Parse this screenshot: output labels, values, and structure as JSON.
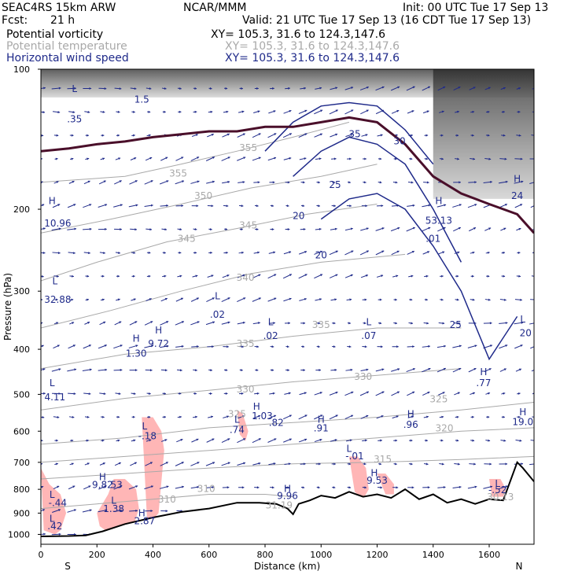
{
  "header": {
    "model": "SEAC4RS 15km ARW",
    "org": "NCAR/MMM",
    "init": "Init: 00 UTC Tue 17 Sep 13",
    "fcst_label": "Fcst:",
    "fcst_value": "21 h",
    "valid": "Valid: 21 UTC Tue 17 Sep 13 (16 CDT Tue 17 Sep 13)",
    "fields": [
      {
        "name": "Potential vorticity",
        "xy": "XY= 105.3, 31.6 to 124.3,147.6",
        "color": "#000000"
      },
      {
        "name": "Potential temperature",
        "xy": "XY= 105.3, 31.6 to 124.3,147.6",
        "color": "#a9a9a9"
      },
      {
        "name": "Horizontal wind speed",
        "xy": "XY= 105.3, 31.6 to 124.3,147.6",
        "color": "#1f2a8a"
      }
    ]
  },
  "chart_data": {
    "type": "cross-section",
    "xlabel": "Distance (km)",
    "ylabel": "Pressure (hPa)",
    "xlim": [
      0,
      1760
    ],
    "ylim": [
      1050,
      100
    ],
    "y_scale": "log",
    "xticks": [
      0,
      200,
      400,
      600,
      800,
      1000,
      1200,
      1400,
      1600
    ],
    "yticks": [
      100,
      200,
      300,
      400,
      500,
      600,
      700,
      800,
      900,
      1000
    ],
    "endpoints": {
      "left": "S",
      "right": "N"
    },
    "colors": {
      "pv_fill": "#ffb6b6",
      "theta": "#a9a9a9",
      "wind": "#1f2a8a",
      "pv_line": "#4a0f2a",
      "terrain": "#000000"
    },
    "terrain": {
      "x": [
        0,
        100,
        160,
        220,
        300,
        400,
        500,
        600,
        700,
        780,
        840,
        880,
        900,
        920,
        960,
        1000,
        1050,
        1100,
        1150,
        1200,
        1250,
        1300,
        1350,
        1400,
        1450,
        1500,
        1550,
        1600,
        1650,
        1700,
        1720,
        1760
      ],
      "p": [
        1010,
        1008,
        1005,
        985,
        950,
        920,
        895,
        880,
        855,
        855,
        860,
        880,
        905,
        860,
        845,
        825,
        835,
        810,
        830,
        820,
        835,
        800,
        840,
        820,
        855,
        840,
        860,
        840,
        845,
        700,
        720,
        770
      ]
    },
    "pv_line": {
      "x": [
        0,
        100,
        200,
        300,
        400,
        500,
        600,
        700,
        800,
        900,
        1000,
        1100,
        1200,
        1300,
        1400,
        1500,
        1600,
        1700,
        1760
      ],
      "p": [
        150,
        148,
        145,
        143,
        140,
        138,
        136,
        136,
        133,
        133,
        130,
        127,
        130,
        145,
        170,
        185,
        195,
        205,
        225
      ]
    },
    "theta_contours": [
      {
        "value": "355",
        "x": [
          0,
          300,
          500,
          700,
          900,
          1100
        ],
        "p": [
          175,
          170,
          160,
          150,
          140,
          130
        ]
      },
      {
        "value": "350",
        "x": [
          0,
          250,
          500,
          750,
          1000,
          1200
        ],
        "p": [
          225,
          210,
          195,
          180,
          170,
          160
        ]
      },
      {
        "value": "345",
        "x": [
          0,
          200,
          450,
          700,
          950,
          1200
        ],
        "p": [
          285,
          260,
          235,
          220,
          205,
          195
        ]
      },
      {
        "value": "340",
        "x": [
          0,
          250,
          500,
          750,
          1000,
          1300
        ],
        "p": [
          360,
          330,
          300,
          275,
          260,
          250
        ]
      },
      {
        "value": "335",
        "x": [
          0,
          300,
          600,
          900,
          1200,
          1500
        ],
        "p": [
          440,
          410,
          395,
          375,
          360,
          360
        ]
      },
      {
        "value": "330",
        "x": [
          0,
          300,
          600,
          900,
          1200,
          1500
        ],
        "p": [
          540,
          510,
          490,
          470,
          455,
          440
        ]
      },
      {
        "value": "325",
        "x": [
          0,
          300,
          600,
          900,
          1200,
          1500,
          1760
        ],
        "p": [
          640,
          620,
          590,
          575,
          560,
          540,
          520
        ]
      },
      {
        "value": "320",
        "x": [
          0,
          300,
          600,
          900,
          1200,
          1500,
          1760
        ],
        "p": [
          700,
          680,
          660,
          640,
          620,
          600,
          590
        ]
      },
      {
        "value": "315",
        "x": [
          0,
          300,
          600,
          900,
          1200,
          1500,
          1760
        ],
        "p": [
          760,
          740,
          720,
          705,
          700,
          690,
          680
        ]
      },
      {
        "value": "310",
        "x": [
          0,
          200,
          400,
          600,
          800,
          900
        ],
        "p": [
          880,
          860,
          840,
          820,
          820,
          830
        ]
      }
    ],
    "wind_contours": [
      {
        "value": "30",
        "x": [
          800,
          900,
          1000,
          1100,
          1200,
          1300,
          1400
        ],
        "p": [
          150,
          130,
          120,
          118,
          120,
          135,
          160
        ]
      },
      {
        "value": "25",
        "x": [
          900,
          1000,
          1100,
          1200,
          1300,
          1400,
          1500
        ],
        "p": [
          170,
          150,
          140,
          145,
          160,
          200,
          260
        ]
      },
      {
        "value": "20",
        "x": [
          1000,
          1100,
          1200,
          1300,
          1400,
          1500,
          1600,
          1700
        ],
        "p": [
          210,
          190,
          185,
          200,
          240,
          300,
          420,
          340
        ]
      }
    ],
    "pv_blobs": [
      {
        "x": [
          0,
          30,
          70,
          90,
          70,
          50,
          10
        ],
        "p": [
          720,
          780,
          820,
          900,
          980,
          1000,
          980
        ]
      },
      {
        "x": [
          200,
          240,
          260,
          300,
          340,
          350,
          330,
          290,
          250,
          210
        ],
        "p": [
          900,
          820,
          760,
          760,
          800,
          880,
          960,
          1000,
          1000,
          960
        ]
      },
      {
        "x": [
          360,
          400,
          430,
          440,
          420,
          380
        ],
        "p": [
          560,
          560,
          600,
          660,
          900,
          960
        ]
      },
      {
        "x": [
          700,
          720,
          740,
          730,
          710
        ],
        "p": [
          540,
          550,
          600,
          630,
          610
        ]
      },
      {
        "x": [
          1100,
          1130,
          1160,
          1170,
          1150,
          1120
        ],
        "p": [
          680,
          680,
          720,
          800,
          840,
          810
        ]
      },
      {
        "x": [
          1200,
          1230,
          1260,
          1260,
          1230
        ],
        "p": [
          740,
          740,
          780,
          820,
          820
        ]
      },
      {
        "x": [
          1600,
          1640,
          1660,
          1650,
          1610
        ],
        "p": [
          760,
          760,
          800,
          830,
          830
        ]
      }
    ],
    "annotations": [
      {
        "text": "L",
        "x": 120,
        "p": 112,
        "color": "#1f2a8a"
      },
      {
        "text": ".35",
        "x": 120,
        "p": 130,
        "color": "#1f2a8a"
      },
      {
        "text": "1.5",
        "x": 360,
        "p": 118,
        "color": "#1f2a8a"
      },
      {
        "text": "355",
        "x": 490,
        "p": 170,
        "color": "#a9a9a9"
      },
      {
        "text": "355",
        "x": 740,
        "p": 150,
        "color": "#a9a9a9"
      },
      {
        "text": "350",
        "x": 580,
        "p": 190,
        "color": "#a9a9a9"
      },
      {
        "text": "345",
        "x": 520,
        "p": 235,
        "color": "#a9a9a9"
      },
      {
        "text": "345",
        "x": 740,
        "p": 220,
        "color": "#a9a9a9"
      },
      {
        "text": "340",
        "x": 730,
        "p": 285,
        "color": "#a9a9a9"
      },
      {
        "text": "335",
        "x": 730,
        "p": 395,
        "color": "#a9a9a9"
      },
      {
        "text": "335",
        "x": 1000,
        "p": 360,
        "color": "#a9a9a9"
      },
      {
        "text": "330",
        "x": 730,
        "p": 495,
        "color": "#a9a9a9"
      },
      {
        "text": "330",
        "x": 1150,
        "p": 465,
        "color": "#a9a9a9"
      },
      {
        "text": "325",
        "x": 1420,
        "p": 520,
        "color": "#a9a9a9"
      },
      {
        "text": "325",
        "x": 700,
        "p": 560,
        "color": "#a9a9a9"
      },
      {
        "text": "320",
        "x": 1440,
        "p": 600,
        "color": "#a9a9a9"
      },
      {
        "text": "315",
        "x": 1220,
        "p": 700,
        "color": "#a9a9a9"
      },
      {
        "text": "310",
        "x": 590,
        "p": 810,
        "color": "#a9a9a9"
      },
      {
        "text": "310",
        "x": 450,
        "p": 855,
        "color": "#a9a9a9"
      },
      {
        "text": "35",
        "x": 1120,
        "p": 140,
        "color": "#1f2a8a"
      },
      {
        "text": "30",
        "x": 1280,
        "p": 145,
        "color": "#1f2a8a"
      },
      {
        "text": "25",
        "x": 1050,
        "p": 180,
        "color": "#1f2a8a"
      },
      {
        "text": "20",
        "x": 920,
        "p": 210,
        "color": "#1f2a8a"
      },
      {
        "text": "20",
        "x": 1000,
        "p": 255,
        "color": "#1f2a8a"
      },
      {
        "text": "25",
        "x": 1480,
        "p": 360,
        "color": "#1f2a8a"
      },
      {
        "text": "H",
        "x": 40,
        "p": 195,
        "color": "#1f2a8a"
      },
      {
        "text": "10.96",
        "x": 60,
        "p": 218,
        "color": "#1f2a8a"
      },
      {
        "text": "L",
        "x": 50,
        "p": 290,
        "color": "#1f2a8a"
      },
      {
        "text": "32.88",
        "x": 60,
        "p": 318,
        "color": "#1f2a8a"
      },
      {
        "text": "L",
        "x": 630,
        "p": 312,
        "color": "#1f2a8a"
      },
      {
        "text": ".02",
        "x": 630,
        "p": 342,
        "color": "#1f2a8a"
      },
      {
        "text": "L",
        "x": 820,
        "p": 355,
        "color": "#1f2a8a"
      },
      {
        "text": ".02",
        "x": 820,
        "p": 380,
        "color": "#1f2a8a"
      },
      {
        "text": "L",
        "x": 1170,
        "p": 355,
        "color": "#1f2a8a"
      },
      {
        "text": ".07",
        "x": 1170,
        "p": 380,
        "color": "#1f2a8a"
      },
      {
        "text": "H",
        "x": 340,
        "p": 385,
        "color": "#1f2a8a"
      },
      {
        "text": "1.30",
        "x": 340,
        "p": 415,
        "color": "#1f2a8a"
      },
      {
        "text": "H",
        "x": 420,
        "p": 370,
        "color": "#1f2a8a"
      },
      {
        "text": "9.72",
        "x": 420,
        "p": 395,
        "color": "#1f2a8a"
      },
      {
        "text": "L",
        "x": 40,
        "p": 480,
        "color": "#1f2a8a"
      },
      {
        "text": "4.11",
        "x": 50,
        "p": 515,
        "color": "#1f2a8a"
      },
      {
        "text": "H",
        "x": 1420,
        "p": 195,
        "color": "#1f2a8a"
      },
      {
        "text": "53.13",
        "x": 1420,
        "p": 215,
        "color": "#1f2a8a"
      },
      {
        "text": ".01",
        "x": 1400,
        "p": 235,
        "color": "#1f2a8a"
      },
      {
        "text": "H",
        "x": 1580,
        "p": 455,
        "color": "#1f2a8a"
      },
      {
        "text": ".77",
        "x": 1580,
        "p": 480,
        "color": "#1f2a8a"
      },
      {
        "text": "L",
        "x": 1720,
        "p": 350,
        "color": "#1f2a8a"
      },
      {
        "text": "20",
        "x": 1730,
        "p": 375,
        "color": "#1f2a8a"
      },
      {
        "text": "H",
        "x": 1700,
        "p": 175,
        "color": "#1f2a8a"
      },
      {
        "text": "24",
        "x": 1700,
        "p": 190,
        "color": "#1f2a8a"
      },
      {
        "text": "L",
        "x": 700,
        "p": 575,
        "color": "#1f2a8a"
      },
      {
        "text": ".74",
        "x": 700,
        "p": 605,
        "color": "#1f2a8a"
      },
      {
        "text": "H",
        "x": 770,
        "p": 540,
        "color": "#1f2a8a"
      },
      {
        "text": "1.03",
        "x": 790,
        "p": 565,
        "color": "#1f2a8a"
      },
      {
        "text": ".82",
        "x": 840,
        "p": 585,
        "color": "#1f2a8a"
      },
      {
        "text": "H",
        "x": 1000,
        "p": 575,
        "color": "#1f2a8a"
      },
      {
        "text": ".91",
        "x": 1000,
        "p": 600,
        "color": "#1f2a8a"
      },
      {
        "text": "H",
        "x": 1320,
        "p": 560,
        "color": "#1f2a8a"
      },
      {
        "text": ".96",
        "x": 1320,
        "p": 590,
        "color": "#1f2a8a"
      },
      {
        "text": "H",
        "x": 1720,
        "p": 555,
        "color": "#1f2a8a"
      },
      {
        "text": "19.0",
        "x": 1720,
        "p": 582,
        "color": "#1f2a8a"
      },
      {
        "text": "L",
        "x": 370,
        "p": 595,
        "color": "#1f2a8a"
      },
      {
        "text": "-.18",
        "x": 380,
        "p": 625,
        "color": "#1f2a8a"
      },
      {
        "text": "L",
        "x": 1100,
        "p": 665,
        "color": "#1f2a8a"
      },
      {
        "text": "-.01",
        "x": 1120,
        "p": 690,
        "color": "#1f2a8a"
      },
      {
        "text": "H",
        "x": 220,
        "p": 765,
        "color": "#1f2a8a"
      },
      {
        "text": "9.82",
        "x": 220,
        "p": 795,
        "color": "#1f2a8a"
      },
      {
        "text": "53",
        "x": 270,
        "p": 795,
        "color": "#1f2a8a"
      },
      {
        "text": "H",
        "x": 1190,
        "p": 750,
        "color": "#1f2a8a"
      },
      {
        "text": "9.53",
        "x": 1200,
        "p": 778,
        "color": "#1f2a8a"
      },
      {
        "text": "H",
        "x": 880,
        "p": 810,
        "color": "#1f2a8a"
      },
      {
        "text": "9.96",
        "x": 880,
        "p": 840,
        "color": "#1f2a8a"
      },
      {
        "text": "31.19",
        "x": 850,
        "p": 880,
        "color": "#a9a9a9"
      },
      {
        "text": "L",
        "x": 1630,
        "p": 790,
        "color": "#1f2a8a"
      },
      {
        "text": "-.52",
        "x": 1630,
        "p": 815,
        "color": "#1f2a8a"
      },
      {
        "text": "30.13",
        "x": 1640,
        "p": 845,
        "color": "#a9a9a9"
      },
      {
        "text": "L",
        "x": 40,
        "p": 835,
        "color": "#1f2a8a"
      },
      {
        "text": "-.44",
        "x": 60,
        "p": 870,
        "color": "#1f2a8a"
      },
      {
        "text": "L",
        "x": 260,
        "p": 860,
        "color": "#1f2a8a"
      },
      {
        "text": "1.38",
        "x": 260,
        "p": 895,
        "color": "#1f2a8a"
      },
      {
        "text": "H",
        "x": 360,
        "p": 915,
        "color": "#1f2a8a"
      },
      {
        "text": "2.87",
        "x": 370,
        "p": 950,
        "color": "#1f2a8a"
      },
      {
        "text": "L",
        "x": 40,
        "p": 940,
        "color": "#1f2a8a"
      },
      {
        "text": ".42",
        "x": 50,
        "p": 975,
        "color": "#1f2a8a"
      }
    ]
  }
}
